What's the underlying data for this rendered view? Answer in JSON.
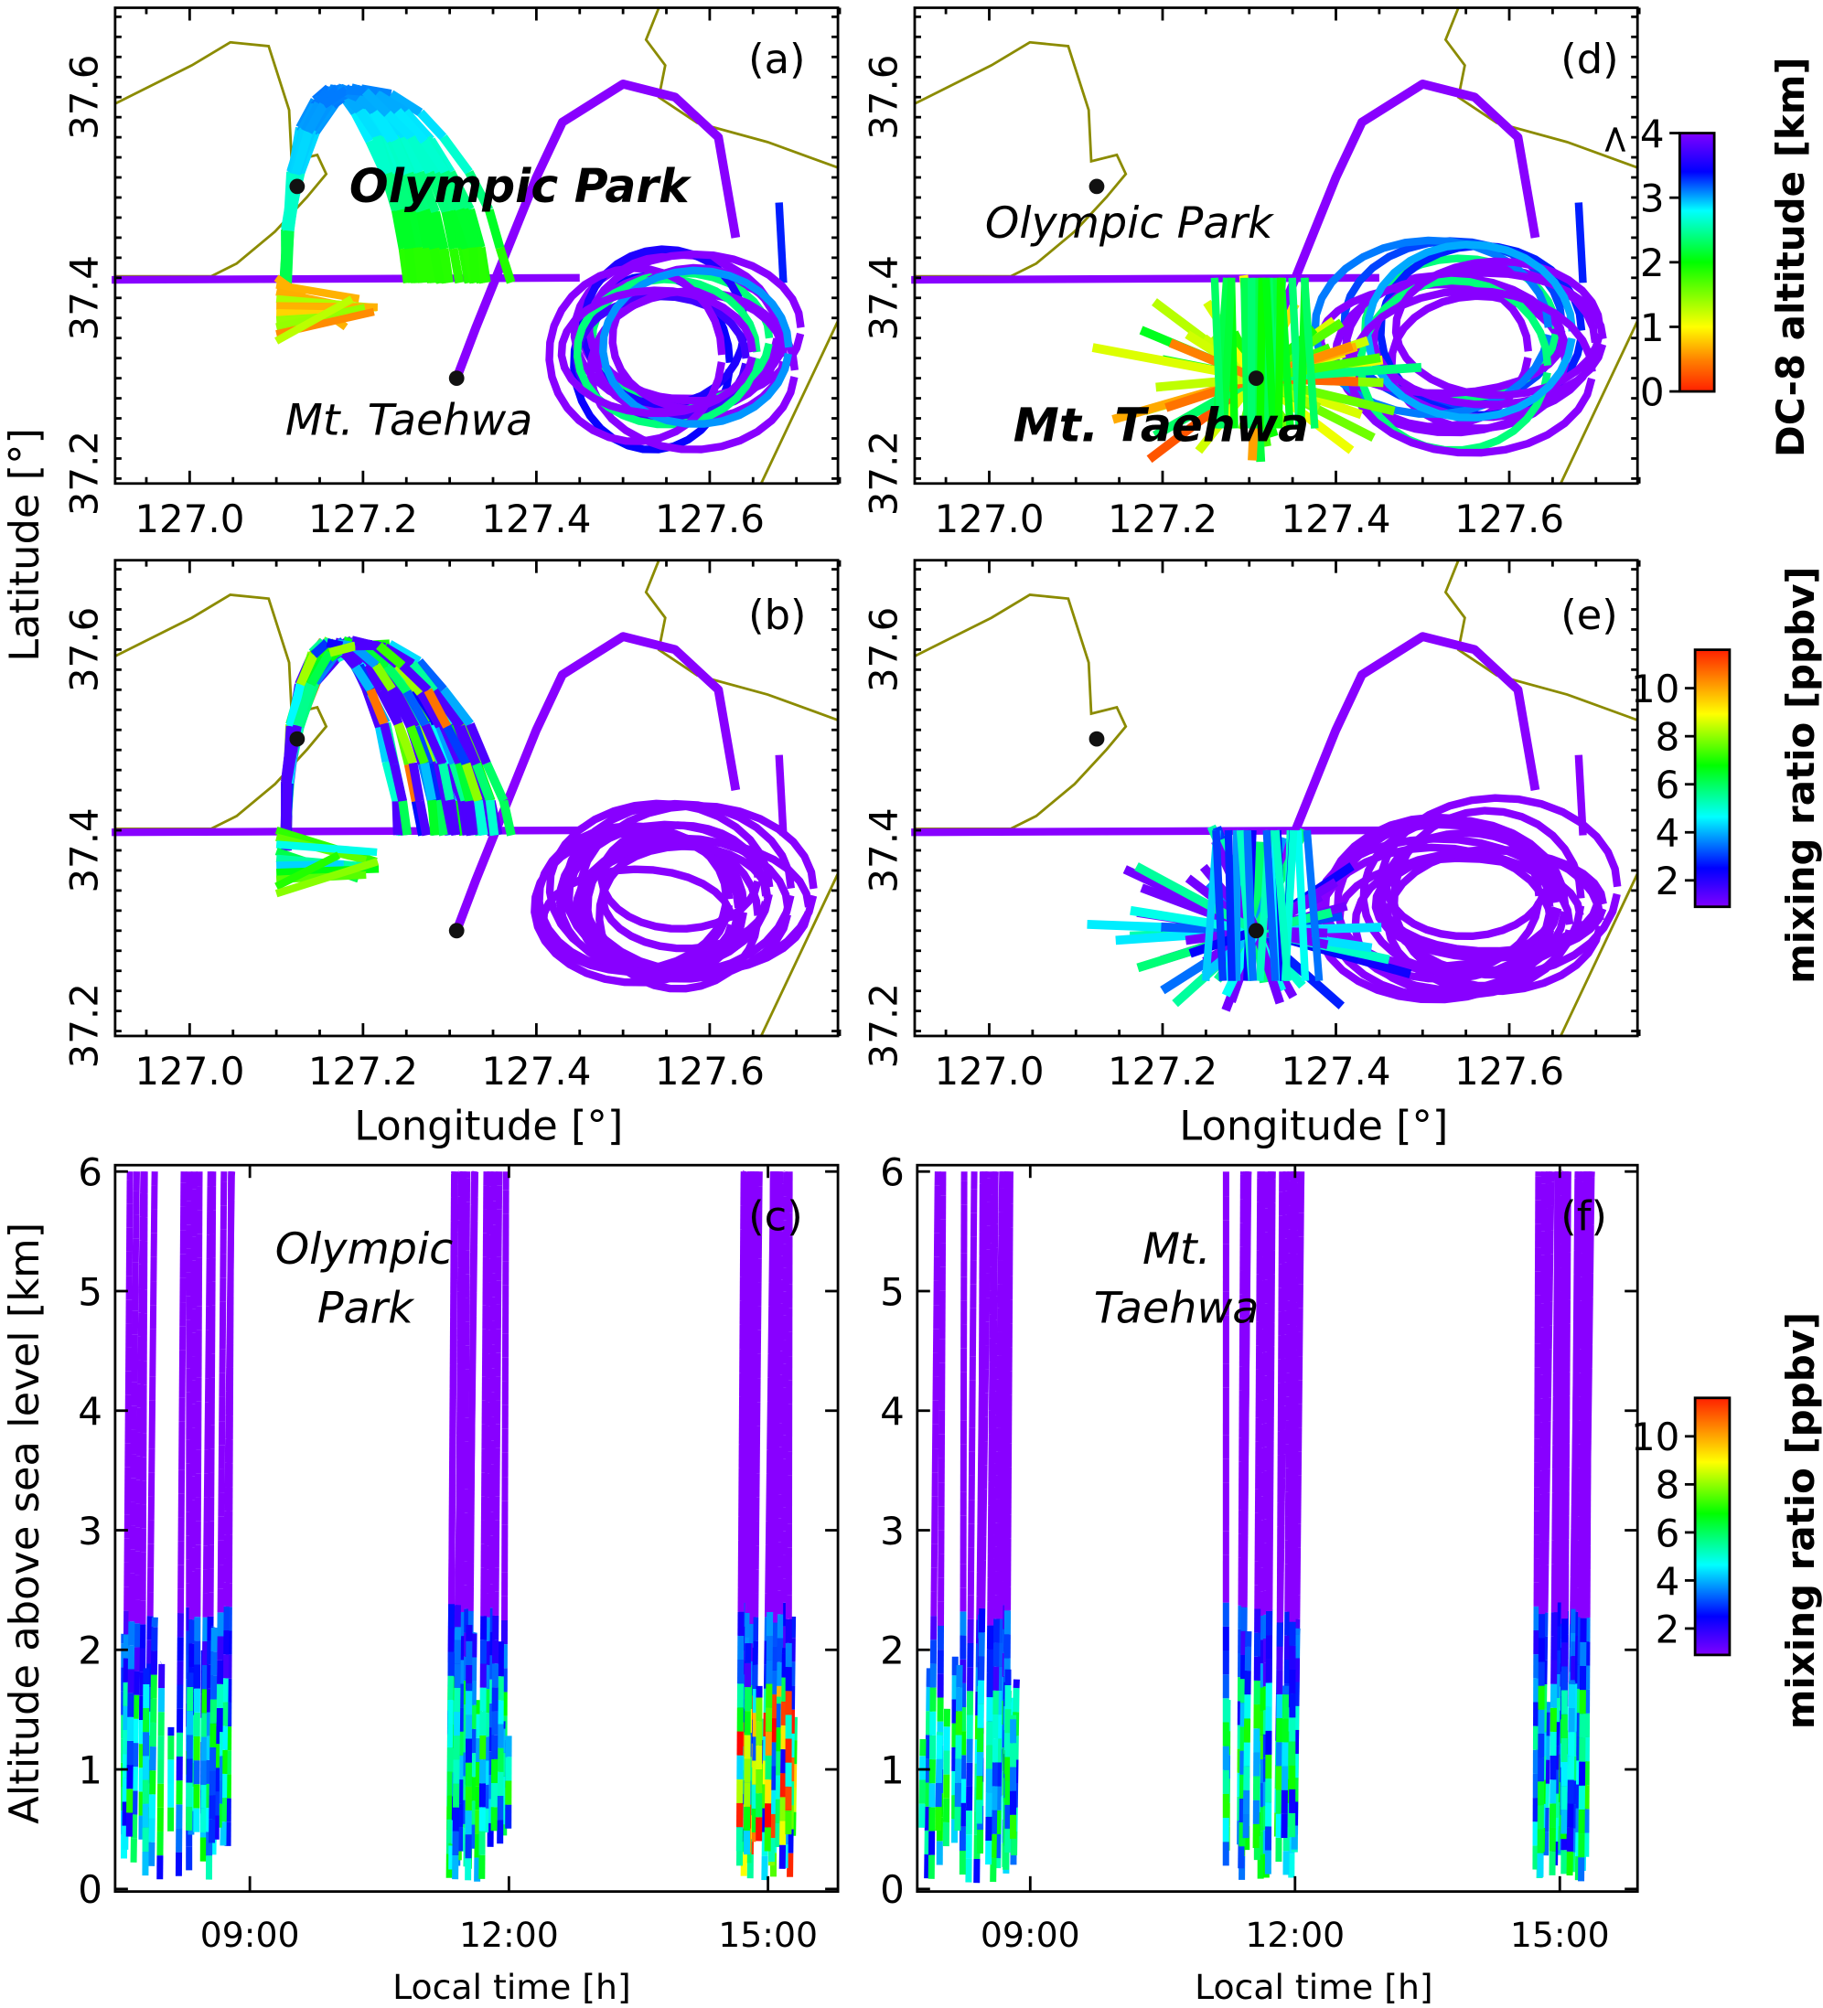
{
  "chart_data": [
    {
      "type": "line",
      "panel": "(a)",
      "variable": "DC-8 altitude",
      "xlabel": "",
      "ylabel": "Latitude [°]",
      "xlim": [
        126.914,
        127.748
      ],
      "ylim": [
        37.215,
        37.689
      ],
      "xticks": [
        "127.0",
        "127.2",
        "127.4",
        "127.6"
      ],
      "yticks": [
        "37.2",
        "37.4",
        "37.6"
      ],
      "sites": [
        {
          "name": "Olympic Park",
          "lon": 127.124,
          "lat": 37.511,
          "style": "bold"
        },
        {
          "name": "Mt. Taehwa",
          "lon": 127.308,
          "lat": 37.32,
          "style": "normal"
        }
      ]
    },
    {
      "type": "line",
      "panel": "(b)",
      "variable": "mixing ratio",
      "xlabel": "Longitude [°]",
      "ylabel": "",
      "xlim": [
        126.914,
        127.748
      ],
      "ylim": [
        37.215,
        37.689
      ],
      "xticks": [
        "127.0",
        "127.2",
        "127.4",
        "127.6"
      ],
      "yticks": [
        "37.2",
        "37.4",
        "37.6"
      ]
    },
    {
      "type": "line",
      "panel": "(c)",
      "variable": "mixing ratio",
      "xlabel": "Local time [h]",
      "ylabel": "Altitude above sea level [km]",
      "xlim": [
        7.44,
        15.81
      ],
      "ylim": [
        0,
        6.05
      ],
      "xticks": [
        "09:00",
        "12:00",
        "15:00"
      ],
      "yticks": [
        "0",
        "1",
        "2",
        "3",
        "4",
        "5",
        "6"
      ],
      "annotation": [
        "Olympic",
        "Park"
      ],
      "profile_windows": [
        [
          7.5,
          8.9
        ],
        [
          11.3,
          12.0
        ],
        [
          14.65,
          15.3
        ]
      ]
    },
    {
      "type": "line",
      "panel": "(d)",
      "variable": "DC-8 altitude",
      "xlim": [
        126.914,
        127.748
      ],
      "ylim": [
        37.215,
        37.689
      ],
      "xticks": [
        "127.0",
        "127.2",
        "127.4",
        "127.6"
      ],
      "yticks": [
        "37.2",
        "37.4",
        "37.6"
      ],
      "sites": [
        {
          "name": "Olympic Park",
          "lon": 127.124,
          "lat": 37.511,
          "style": "normal"
        },
        {
          "name": "Mt. Taehwa",
          "lon": 127.308,
          "lat": 37.32,
          "style": "bold"
        }
      ]
    },
    {
      "type": "line",
      "panel": "(e)",
      "variable": "mixing ratio",
      "xlabel": "Longitude [°]",
      "xlim": [
        126.914,
        127.748
      ],
      "ylim": [
        37.215,
        37.689
      ],
      "xticks": [
        "127.0",
        "127.2",
        "127.4",
        "127.6"
      ],
      "yticks": [
        "37.2",
        "37.4",
        "37.6"
      ]
    },
    {
      "type": "line",
      "panel": "(f)",
      "variable": "mixing ratio",
      "xlabel": "Local time [h]",
      "xlim": [
        7.72,
        15.88
      ],
      "ylim": [
        0,
        6.05
      ],
      "xticks": [
        "09:00",
        "12:00",
        "15:00"
      ],
      "yticks": [
        "0",
        "1",
        "2",
        "3",
        "4",
        "5",
        "6"
      ],
      "annotation": [
        "Mt.",
        "Taehwa"
      ],
      "profile_windows": [
        [
          7.75,
          8.9
        ],
        [
          11.2,
          12.0
        ],
        [
          14.7,
          15.3
        ]
      ]
    }
  ],
  "colorbars": {
    "altitude": {
      "title": "DC-8 altitude [km]",
      "ticks": [
        "0",
        "1",
        "2",
        "3",
        "4"
      ],
      "max_prefix": ">",
      "range": [
        0,
        4
      ]
    },
    "mixing_top": {
      "title": "mixing ratio [ppbv]",
      "ticks": [
        "2",
        "4",
        "6",
        "8",
        "10"
      ],
      "range": [
        1,
        11
      ]
    },
    "mixing_bottom": {
      "title": "mixing ratio [ppbv]",
      "ticks": [
        "2",
        "4",
        "6",
        "8",
        "10"
      ],
      "range": [
        1,
        11
      ]
    }
  },
  "tracks": {
    "transect": [
      [
        126.91,
        37.418
      ],
      [
        127.45,
        37.42
      ]
    ],
    "loop": [
      [
        127.308,
        37.32
      ],
      [
        127.33,
        37.37
      ],
      [
        127.4,
        37.52
      ],
      [
        127.43,
        37.575
      ],
      [
        127.5,
        37.613
      ],
      [
        127.56,
        37.6
      ],
      [
        127.61,
        37.56
      ],
      [
        127.63,
        37.46
      ]
    ],
    "east_leg": [
      [
        127.68,
        37.495
      ],
      [
        127.685,
        37.415
      ]
    ],
    "orbit_center": [
      127.55,
      37.35
    ]
  },
  "colors": {
    "coast": "#8b8b00",
    "purple": "#7f00ff",
    "dot": "#111111"
  }
}
